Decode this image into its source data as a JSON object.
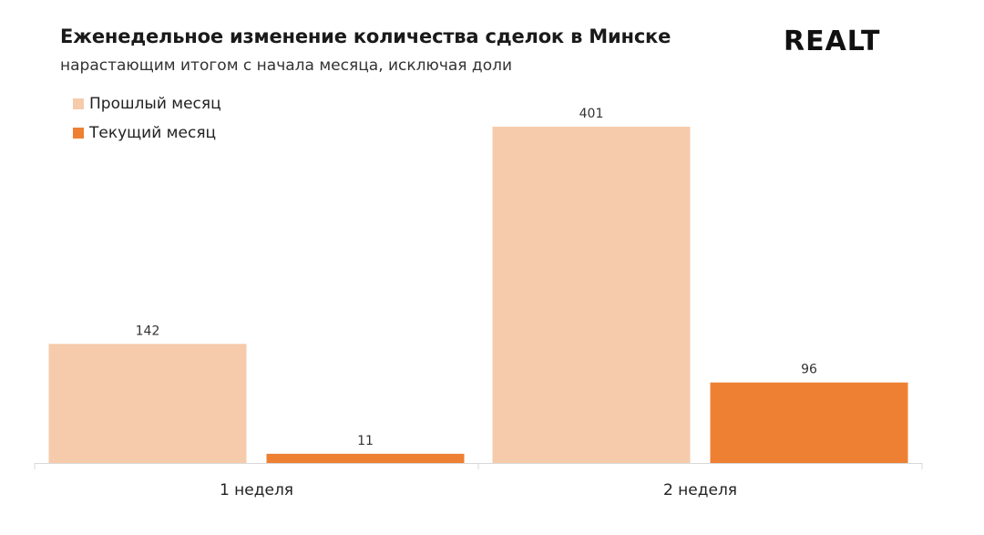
{
  "header": {
    "title": "Еженедельное изменение количества сделок в Минске",
    "subtitle": "нарастающим итогом с начала месяца, исключая доли",
    "logo_text": "REALT"
  },
  "chart_data": {
    "type": "bar",
    "title": "Еженедельное изменение количества сделок в Минске",
    "subtitle": "нарастающим итогом с начала месяца, исключая доли",
    "categories": [
      "1 неделя",
      "2 неделя"
    ],
    "series": [
      {
        "name": "Прошлый месяц",
        "values": [
          142,
          401
        ],
        "color": "#f6cbab"
      },
      {
        "name": "Текущий месяц",
        "values": [
          11,
          96
        ],
        "color": "#ee8033"
      }
    ],
    "xlabel": "",
    "ylabel": "",
    "ylim": [
      0,
      401
    ],
    "grid": false,
    "legend_position": "top-left",
    "data_labels": true
  }
}
